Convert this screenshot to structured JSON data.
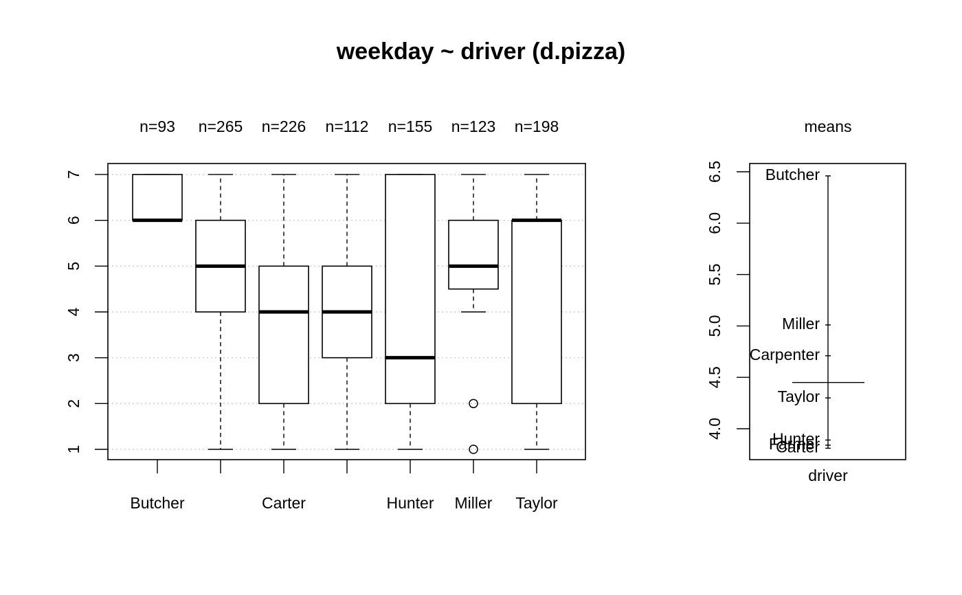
{
  "title": "weekday ~ driver (d.pizza)",
  "chart_data": [
    {
      "type": "box",
      "title": "weekday ~ driver (d.pizza)",
      "categories": [
        "Butcher",
        "Carpenter",
        "Carter",
        "Farmer",
        "Hunter",
        "Miller",
        "Taylor"
      ],
      "category_labels_shown": [
        "Butcher",
        "",
        "Carter",
        "",
        "Hunter",
        "Miller",
        "Taylor"
      ],
      "n_labels": [
        "n=93",
        "n=265",
        "n=226",
        "n=112",
        "n=155",
        "n=123",
        "n=198"
      ],
      "boxes": [
        {
          "whisker_low": 6,
          "q1": 6,
          "median": 6,
          "q3": 7,
          "whisker_high": 7,
          "outliers": []
        },
        {
          "whisker_low": 1,
          "q1": 4,
          "median": 5,
          "q3": 6,
          "whisker_high": 7,
          "outliers": []
        },
        {
          "whisker_low": 1,
          "q1": 2,
          "median": 4,
          "q3": 5,
          "whisker_high": 7,
          "outliers": []
        },
        {
          "whisker_low": 1,
          "q1": 3,
          "median": 4,
          "q3": 5,
          "whisker_high": 7,
          "outliers": []
        },
        {
          "whisker_low": 1,
          "q1": 2,
          "median": 3,
          "q3": 7,
          "whisker_high": 7,
          "outliers": []
        },
        {
          "whisker_low": 4,
          "q1": 4.5,
          "median": 5,
          "q3": 6,
          "whisker_high": 7,
          "outliers": [
            2,
            1
          ]
        },
        {
          "whisker_low": 1,
          "q1": 2,
          "median": 6,
          "q3": 6,
          "whisker_high": 7,
          "outliers": []
        }
      ],
      "ylim": [
        1,
        7
      ],
      "yticks": [
        "1",
        "2",
        "3",
        "4",
        "5",
        "6",
        "7"
      ],
      "grid": "horizontal dotted"
    },
    {
      "type": "dot",
      "title": "means",
      "xlabel": "driver",
      "ylim": [
        3.7,
        6.6
      ],
      "yticks": [
        "4.0",
        "4.5",
        "5.0",
        "5.5",
        "6.0",
        "6.5"
      ],
      "grand_mean": 4.45,
      "points": [
        {
          "label": "Butcher",
          "value": 6.46
        },
        {
          "label": "Miller",
          "value": 5.01
        },
        {
          "label": "Carpenter",
          "value": 4.71
        },
        {
          "label": "Taylor",
          "value": 4.3
        },
        {
          "label": "Hunter",
          "value": 3.89
        },
        {
          "label": "Farmer",
          "value": 3.84
        },
        {
          "label": "Carter",
          "value": 3.81
        }
      ]
    }
  ]
}
